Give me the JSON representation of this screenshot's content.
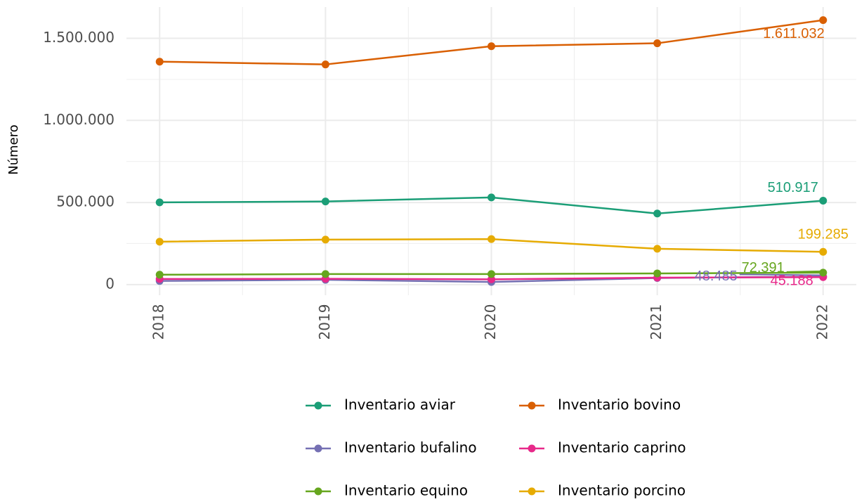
{
  "chart_data": {
    "type": "line",
    "ylabel": "Número",
    "x": [
      2018,
      2019,
      2020,
      2021,
      2022
    ],
    "xlim": [
      2017.8,
      2022.2
    ],
    "xticks": [
      2018,
      2019,
      2020,
      2021,
      2022
    ],
    "xminor": [
      2018.5,
      2019.5,
      2020.5,
      2021.5
    ],
    "ylim": [
      -65000,
      1690800
    ],
    "yticks": [
      0,
      {
        "value": 500000,
        "label": "500.000"
      },
      {
        "value": 1000000,
        "label": "1.000.000"
      },
      {
        "value": 1500000,
        "label": "1.500.000"
      }
    ],
    "yminor": [
      250000,
      750000,
      1250000
    ],
    "grid": true,
    "legend": "bottom",
    "series": [
      {
        "name": "Inventario aviar",
        "color": "#1b9e77",
        "values": [
          501000,
          506000,
          531000,
          433000,
          510917
        ],
        "value_labels": [
          null,
          null,
          null,
          null,
          "510.917"
        ]
      },
      {
        "name": "Inventario bovino",
        "color": "#d95f02",
        "values": [
          1358000,
          1341000,
          1452000,
          1470000,
          1611032
        ],
        "value_labels": [
          null,
          null,
          null,
          null,
          "1.611.032"
        ]
      },
      {
        "name": "Inventario bufalino",
        "color": "#7570b3",
        "values": [
          22000,
          29000,
          16000,
          40000,
          48485
        ],
        "value_labels": [
          null,
          null,
          null,
          null,
          "48.485"
        ]
      },
      {
        "name": "Inventario caprino",
        "color": "#e7298a",
        "values": [
          34000,
          35000,
          32000,
          42000,
          45188
        ],
        "value_labels": [
          null,
          null,
          null,
          null,
          "45.188"
        ]
      },
      {
        "name": "Inventario equino",
        "color": "#66a61e",
        "values": [
          60000,
          64000,
          64000,
          68000,
          72391
        ],
        "value_labels": [
          null,
          null,
          null,
          null,
          "72.391"
        ]
      },
      {
        "name": "Inventario porcino",
        "color": "#e6ab02",
        "values": [
          261000,
          274000,
          277000,
          218000,
          199285
        ],
        "value_labels": [
          null,
          null,
          null,
          null,
          "199.285"
        ]
      }
    ]
  }
}
